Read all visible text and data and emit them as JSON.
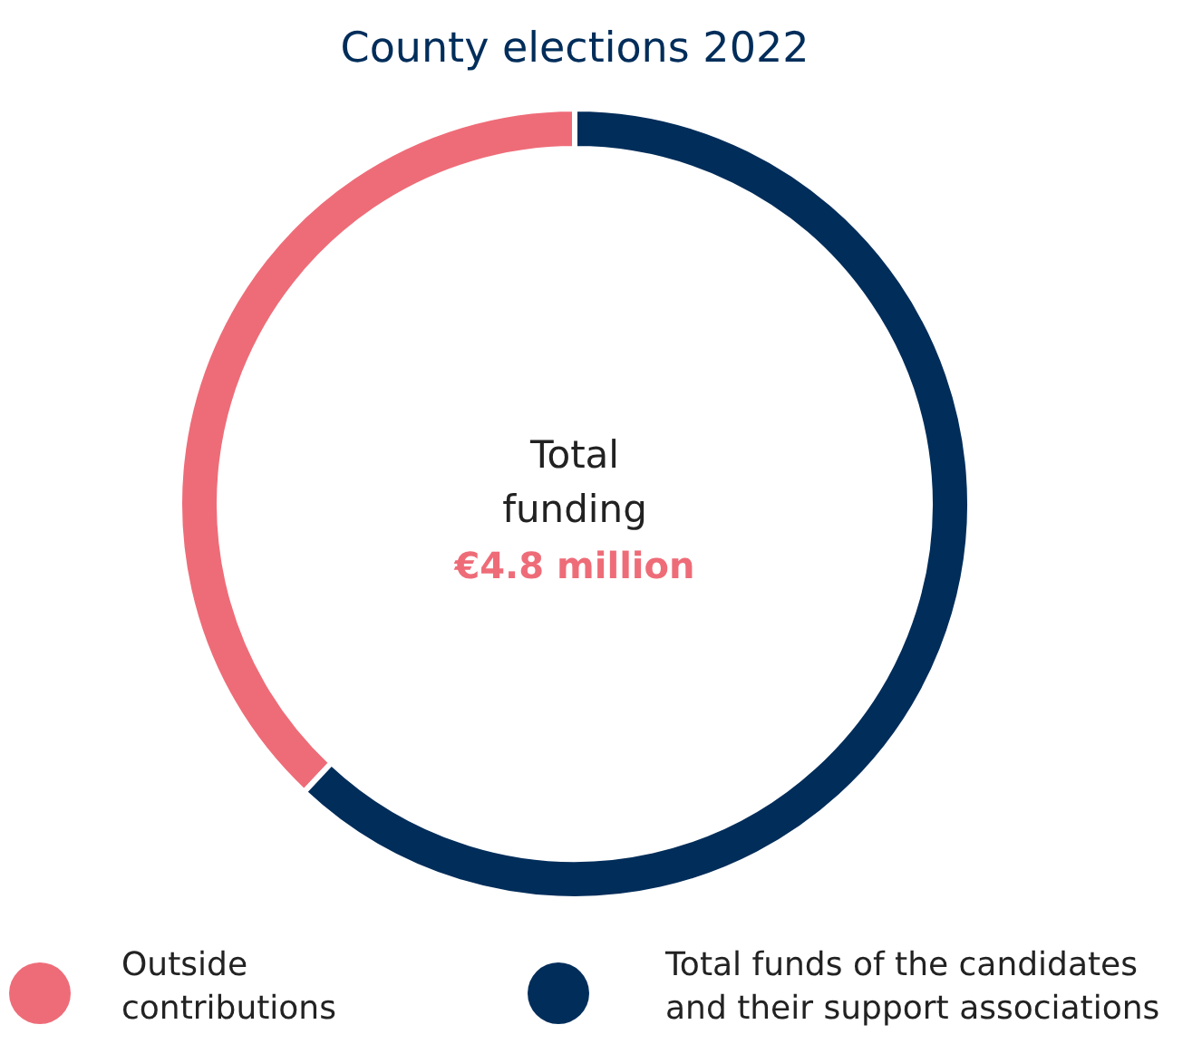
{
  "chart_data": {
    "type": "donut",
    "title": "County elections 2022",
    "categories": [
      "Outside contributions",
      "Total funds of the candidates and their support associations"
    ],
    "values": [
      38,
      62
    ],
    "colors": [
      "#ee6c78",
      "#002d5a"
    ],
    "annotations": [
      "Total funding",
      "€4.8 million"
    ],
    "legend": "bottom"
  }
}
